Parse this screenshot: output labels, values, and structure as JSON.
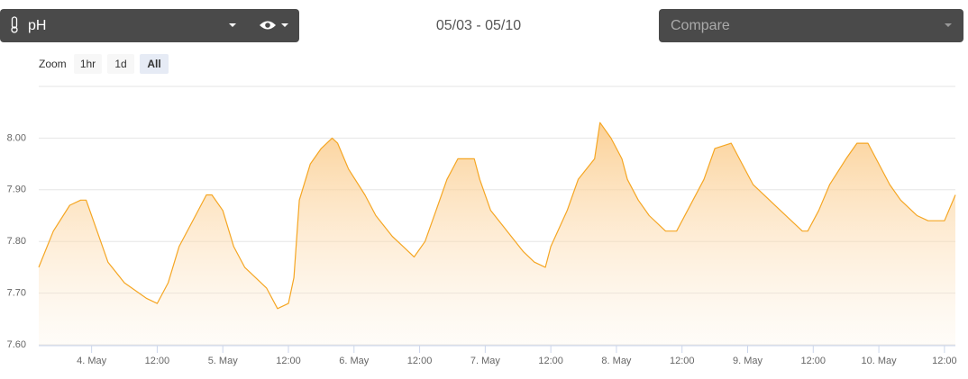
{
  "header": {
    "sensor": "pH",
    "date_range": "05/03 - 05/10",
    "compare": "Compare"
  },
  "zoom": {
    "label": "Zoom",
    "options": [
      "1hr",
      "1d",
      "All"
    ]
  },
  "chart_data": {
    "type": "area",
    "color": "#f5a623",
    "grid": true,
    "x": [
      "05-03 14:20",
      "05-03 17:00",
      "05-03 20:00",
      "05-03 22:00",
      "05-03 23:00",
      "05-04 01:00",
      "05-04 03:00",
      "05-04 06:00",
      "05-04 10:00",
      "05-04 12:00",
      "05-04 14:00",
      "05-04 16:00",
      "05-04 19:00",
      "05-04 21:00",
      "05-04 22:00",
      "05-05 00:00",
      "05-05 02:00",
      "05-05 04:00",
      "05-05 08:00",
      "05-05 10:00",
      "05-05 12:00",
      "05-05 13:00",
      "05-05 14:00",
      "05-05 16:00",
      "05-05 18:00",
      "05-05 20:00",
      "05-05 21:00",
      "05-05 23:00",
      "05-06 02:00",
      "05-06 04:00",
      "05-06 07:00",
      "05-06 09:00",
      "05-06 11:00",
      "05-06 13:00",
      "05-06 15:00",
      "05-06 17:00",
      "05-06 19:00",
      "05-06 22:00",
      "05-06 23:00",
      "05-07 01:00",
      "05-07 04:00",
      "05-07 07:00",
      "05-07 09:00",
      "05-07 11:00",
      "05-07 12:00",
      "05-07 15:00",
      "05-07 17:00",
      "05-07 20:00",
      "05-07 21:00",
      "05-07 23:00",
      "05-08 01:00",
      "05-08 02:00",
      "05-08 04:00",
      "05-08 06:00",
      "05-08 09:00",
      "05-08 11:00",
      "05-08 13:00",
      "05-08 16:00",
      "05-08 18:00",
      "05-08 21:00",
      "05-08 23:00",
      "05-09 01:00",
      "05-09 04:00",
      "05-09 06:00",
      "05-09 08:00",
      "05-09 10:00",
      "05-09 11:00",
      "05-09 13:00",
      "05-09 15:00",
      "05-09 18:00",
      "05-09 20:00",
      "05-09 22:00",
      "05-10 00:00",
      "05-10 02:00",
      "05-10 04:00",
      "05-10 07:00",
      "05-10 09:00",
      "05-10 12:00",
      "05-10 14:00"
    ],
    "values": [
      7.75,
      7.82,
      7.87,
      7.88,
      7.88,
      7.82,
      7.76,
      7.72,
      7.69,
      7.68,
      7.72,
      7.79,
      7.85,
      7.89,
      7.89,
      7.86,
      7.79,
      7.75,
      7.71,
      7.67,
      7.68,
      7.73,
      7.88,
      7.95,
      7.98,
      8.0,
      7.99,
      7.94,
      7.89,
      7.85,
      7.81,
      7.79,
      7.77,
      7.8,
      7.86,
      7.92,
      7.96,
      7.96,
      7.92,
      7.86,
      7.82,
      7.78,
      7.76,
      7.75,
      7.79,
      7.86,
      7.92,
      7.96,
      8.03,
      8.0,
      7.96,
      7.92,
      7.88,
      7.85,
      7.82,
      7.82,
      7.86,
      7.92,
      7.98,
      7.99,
      7.95,
      7.91,
      7.88,
      7.86,
      7.84,
      7.82,
      7.82,
      7.86,
      7.91,
      7.96,
      7.99,
      7.99,
      7.95,
      7.91,
      7.88,
      7.85,
      7.84,
      7.84,
      7.89
    ],
    "xlim": [
      "05-03 14:20",
      "05-10 14:00"
    ],
    "xticks": [
      {
        "value": "05-04 00:00",
        "label": "4. May"
      },
      {
        "value": "05-04 12:00",
        "label": "12:00"
      },
      {
        "value": "05-05 00:00",
        "label": "5. May"
      },
      {
        "value": "05-05 12:00",
        "label": "12:00"
      },
      {
        "value": "05-06 00:00",
        "label": "6. May"
      },
      {
        "value": "05-06 12:00",
        "label": "12:00"
      },
      {
        "value": "05-07 00:00",
        "label": "7. May"
      },
      {
        "value": "05-07 12:00",
        "label": "12:00"
      },
      {
        "value": "05-08 00:00",
        "label": "8. May"
      },
      {
        "value": "05-08 12:00",
        "label": "12:00"
      },
      {
        "value": "05-09 00:00",
        "label": "9. May"
      },
      {
        "value": "05-09 12:00",
        "label": "12:00"
      },
      {
        "value": "05-10 00:00",
        "label": "10. May"
      },
      {
        "value": "05-10 12:00",
        "label": "12:00"
      }
    ],
    "ylim": [
      7.6,
      8.1
    ],
    "yticks": [
      {
        "value": 7.6,
        "label": "7.60"
      },
      {
        "value": 7.7,
        "label": "7.70"
      },
      {
        "value": 7.8,
        "label": "7.80"
      },
      {
        "value": 7.9,
        "label": "7.90"
      },
      {
        "value": 8.0,
        "label": "8.00"
      }
    ]
  }
}
